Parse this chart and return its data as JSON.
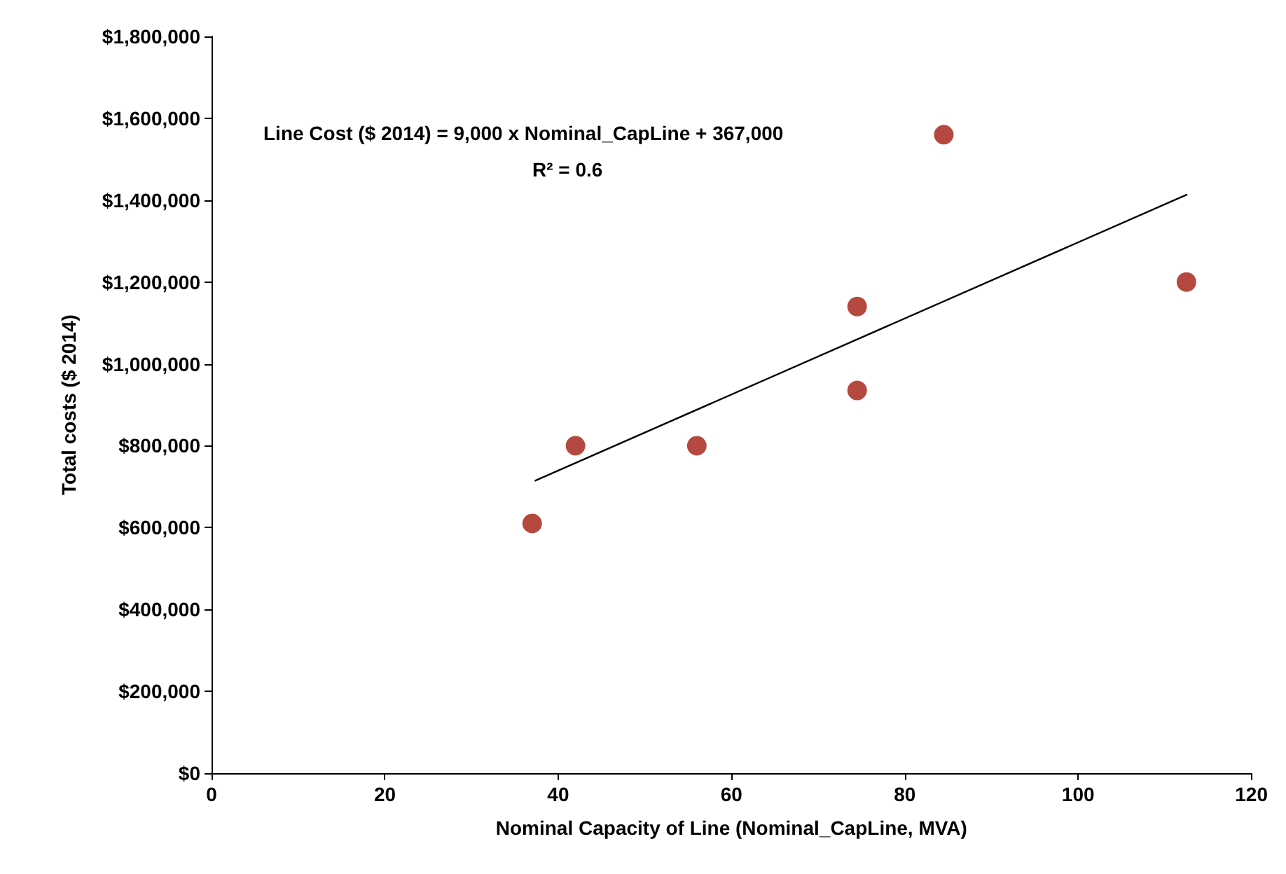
{
  "chart_data": {
    "type": "scatter",
    "xlabel": "Nominal Capacity of Line (Nominal_CapLine, MVA)",
    "ylabel": "Total costs ($ 2014)",
    "xlim": [
      0,
      120
    ],
    "xticks": [
      0,
      20,
      40,
      60,
      80,
      100,
      120
    ],
    "ylim": [
      0,
      1800000
    ],
    "yticks": [
      {
        "value": 0,
        "label": "$0"
      },
      {
        "value": 200000,
        "label": "$200,000"
      },
      {
        "value": 400000,
        "label": "$400,000"
      },
      {
        "value": 600000,
        "label": "$600,000"
      },
      {
        "value": 800000,
        "label": "$800,000"
      },
      {
        "value": 1000000,
        "label": "$1,000,000"
      },
      {
        "value": 1200000,
        "label": "$1,200,000"
      },
      {
        "value": 1400000,
        "label": "$1,400,000"
      },
      {
        "value": 1600000,
        "label": "$1,600,000"
      },
      {
        "value": 1800000,
        "label": "$1,800,000"
      }
    ],
    "grid": false,
    "series": [
      {
        "marker": "circle",
        "color": "#a31a0f",
        "x": [
          37,
          42,
          56,
          74.5,
          74.5,
          84.5,
          112.5
        ],
        "values": [
          610000,
          800000,
          800000,
          1140000,
          935000,
          1560000,
          1200000
        ]
      },
      {
        "type": "line",
        "marker": "none",
        "color": "#000000",
        "x": [
          37.3,
          112.6
        ],
        "values": [
          714000,
          1414000
        ]
      }
    ],
    "annotations": [
      "Line Cost ($ 2014) = 9,000 x Nominal_CapLine + 367,000",
      "R² = 0.6"
    ]
  }
}
